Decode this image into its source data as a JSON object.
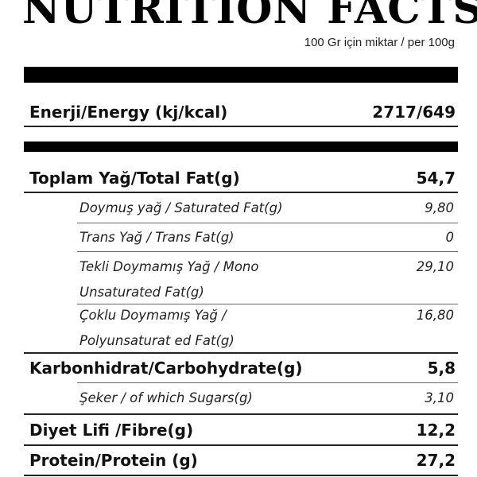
{
  "header": {
    "title": "NUTRITION FACTS",
    "subtitle": "100 Gr için miktar / per 100g"
  },
  "energy": {
    "label": "Enerji/Energy (kj/kcal)",
    "value": "2717/649"
  },
  "total_fat": {
    "label": "Toplam Yağ/Total Fat(g)",
    "value": "54,7"
  },
  "saturated_fat": {
    "label": "Doymuş yağ / Saturated Fat(g)",
    "value": "9,80"
  },
  "trans_fat": {
    "label": "Trans Yağ / Trans Fat(g)",
    "value": "0"
  },
  "mono_fat": {
    "label_line1": "Tekli Doymamış Yağ / Mono",
    "label_line2": "Unsaturated Fat(g)",
    "value": "29,10"
  },
  "poly_fat": {
    "label_line1": "Çoklu Doymamış Yağ /",
    "label_line2": "Polyunsaturat ed Fat(g)",
    "value": "16,80"
  },
  "carbohydrate": {
    "label": "Karbonhidrat/Carbohydrate(g)",
    "value": "5,8"
  },
  "sugars": {
    "label": "Şeker / of which Sugars(g)",
    "value": "3,10"
  },
  "fibre": {
    "label": "Diyet Lifi /Fibre(g)",
    "value": "12,2"
  },
  "protein": {
    "label": "Protein/Protein (g)",
    "value": "27,2"
  }
}
